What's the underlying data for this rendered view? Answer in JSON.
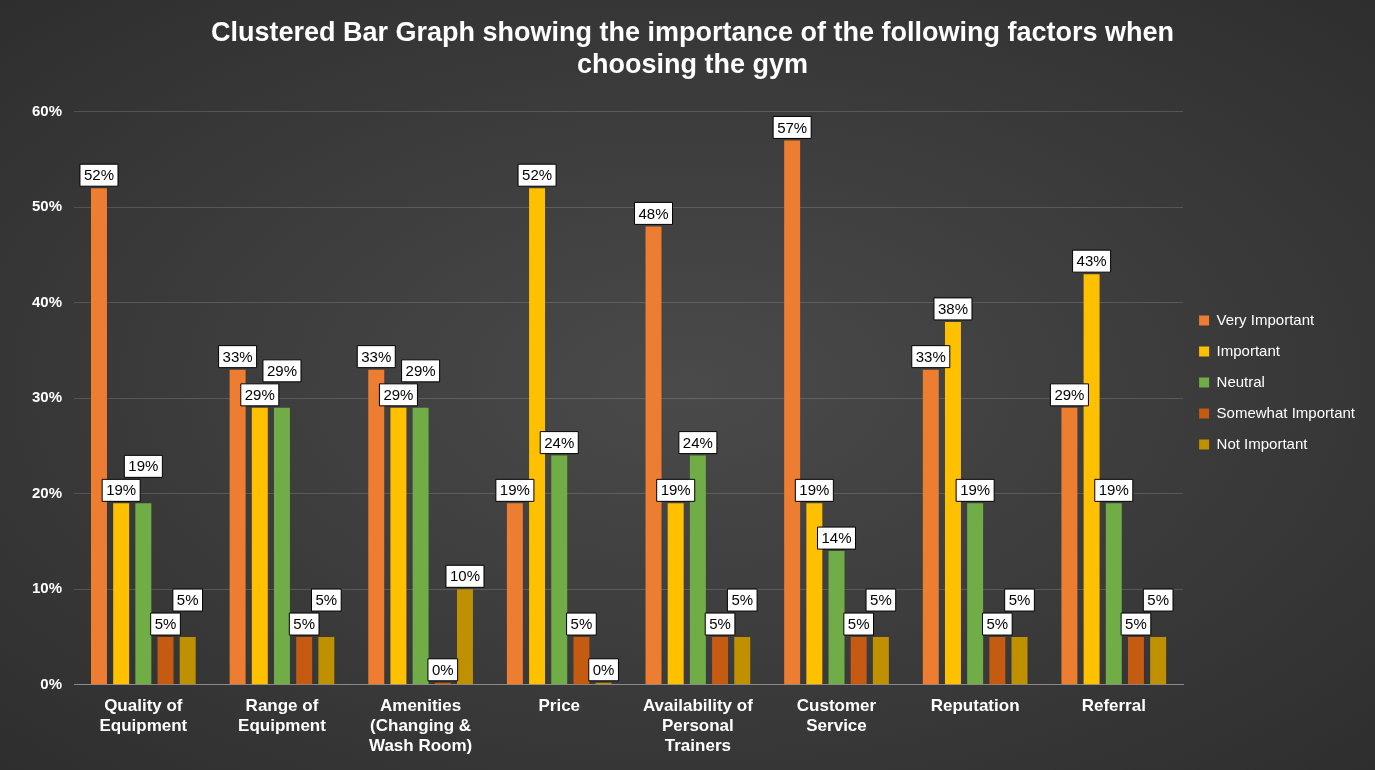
{
  "chart_data": {
    "type": "bar",
    "title": "Clustered Bar Graph showing the importance of the following factors when choosing the gym",
    "categories": [
      "Quality of Equipment",
      "Range of Equipment",
      "Amenities (Changing & Wash Room)",
      "Price",
      "Availability of Personal Trainers",
      "Customer Service",
      "Reputation",
      "Referral"
    ],
    "series": [
      {
        "name": "Very Important",
        "color": "#ed7d31",
        "values": [
          52,
          33,
          33,
          19,
          48,
          57,
          33,
          29
        ],
        "value_labels": [
          "52%",
          "33%",
          "33%",
          "19%",
          "48%",
          "57%",
          "33%",
          "29%"
        ]
      },
      {
        "name": "Important",
        "color": "#ffc000",
        "values": [
          19,
          29,
          29,
          52,
          19,
          19,
          38,
          43
        ],
        "value_labels": [
          "19%",
          "29%",
          "29%",
          "52%",
          "19%",
          "19%",
          "38%",
          "43%"
        ]
      },
      {
        "name": "Neutral",
        "color": "#70ad47",
        "values": [
          19,
          29,
          29,
          24,
          24,
          14,
          19,
          19
        ],
        "value_labels": [
          "19%",
          "29%",
          "29%",
          "24%",
          "24%",
          "14%",
          "19%",
          "19%"
        ]
      },
      {
        "name": "Somewhat Important",
        "color": "#c55a11",
        "values": [
          5,
          5,
          0,
          5,
          5,
          5,
          5,
          5
        ],
        "value_labels": [
          "5%",
          "5%",
          "0%",
          "5%",
          "5%",
          "5%",
          "5%",
          "5%"
        ]
      },
      {
        "name": "Not Important",
        "color": "#bf9000",
        "values": [
          5,
          5,
          10,
          0,
          5,
          5,
          5,
          5
        ],
        "value_labels": [
          "5%",
          "5%",
          "10%",
          "0%",
          "5%",
          "5%",
          "5%",
          "5%"
        ]
      }
    ],
    "ylim": [
      0,
      60
    ],
    "yticks": [
      {
        "value": 0,
        "label": "0%"
      },
      {
        "value": 10,
        "label": "10%"
      },
      {
        "value": 20,
        "label": "20%"
      },
      {
        "value": 30,
        "label": "30%"
      },
      {
        "value": 40,
        "label": "40%"
      },
      {
        "value": 50,
        "label": "50%"
      },
      {
        "value": 60,
        "label": "60%"
      }
    ],
    "grid": "y",
    "legend": "right"
  }
}
